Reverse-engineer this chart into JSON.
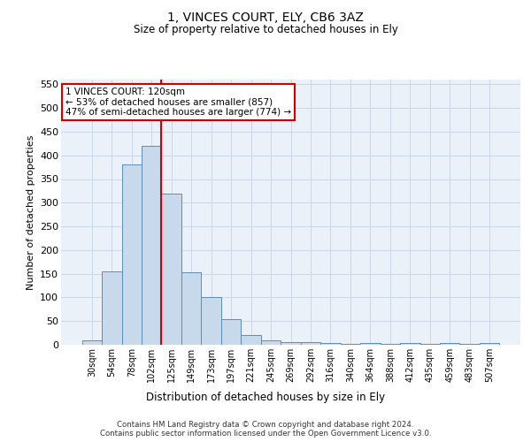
{
  "title": "1, VINCES COURT, ELY, CB6 3AZ",
  "subtitle": "Size of property relative to detached houses in Ely",
  "xlabel": "Distribution of detached houses by size in Ely",
  "ylabel": "Number of detached properties",
  "footnote1": "Contains HM Land Registry data © Crown copyright and database right 2024.",
  "footnote2": "Contains public sector information licensed under the Open Government Licence v3.0.",
  "annotation_line1": "1 VINCES COURT: 120sqm",
  "annotation_line2": "← 53% of detached houses are smaller (857)",
  "annotation_line3": "47% of semi-detached houses are larger (774) →",
  "bar_labels": [
    "30sqm",
    "54sqm",
    "78sqm",
    "102sqm",
    "125sqm",
    "149sqm",
    "173sqm",
    "197sqm",
    "221sqm",
    "245sqm",
    "269sqm",
    "292sqm",
    "316sqm",
    "340sqm",
    "364sqm",
    "388sqm",
    "412sqm",
    "435sqm",
    "459sqm",
    "483sqm",
    "507sqm"
  ],
  "bar_values": [
    10,
    155,
    380,
    420,
    320,
    153,
    100,
    55,
    20,
    10,
    5,
    5,
    3,
    2,
    3,
    2,
    3,
    2,
    3,
    2,
    3
  ],
  "bar_color": "#c9d9ec",
  "bar_edge_color": "#5b8db8",
  "vline_color": "#cc0000",
  "vline_x_index": 4,
  "ylim": [
    0,
    560
  ],
  "yticks": [
    0,
    50,
    100,
    150,
    200,
    250,
    300,
    350,
    400,
    450,
    500,
    550
  ],
  "grid_color": "#c8d8e8",
  "annotation_box_color": "#ffffff",
  "annotation_box_edge": "#cc0000",
  "bg_color": "#eaf1f8"
}
